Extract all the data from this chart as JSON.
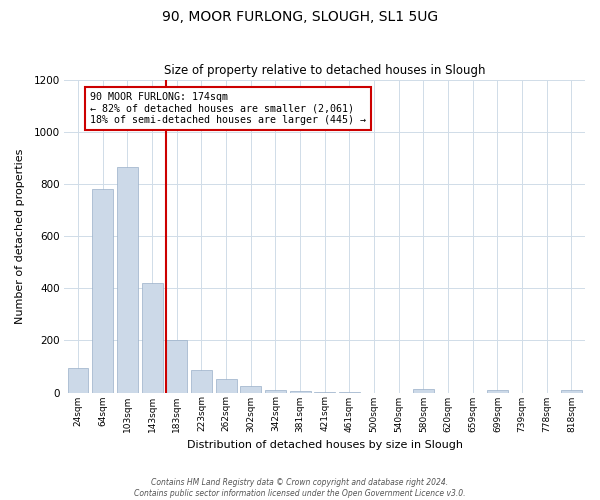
{
  "title": "90, MOOR FURLONG, SLOUGH, SL1 5UG",
  "subtitle": "Size of property relative to detached houses in Slough",
  "xlabel": "Distribution of detached houses by size in Slough",
  "ylabel": "Number of detached properties",
  "bar_labels": [
    "24sqm",
    "64sqm",
    "103sqm",
    "143sqm",
    "183sqm",
    "223sqm",
    "262sqm",
    "302sqm",
    "342sqm",
    "381sqm",
    "421sqm",
    "461sqm",
    "500sqm",
    "540sqm",
    "580sqm",
    "620sqm",
    "659sqm",
    "699sqm",
    "739sqm",
    "778sqm",
    "818sqm"
  ],
  "bar_values": [
    95,
    780,
    865,
    420,
    200,
    85,
    53,
    25,
    10,
    5,
    2,
    1,
    0,
    0,
    12,
    0,
    0,
    10,
    0,
    0,
    8
  ],
  "bar_color": "#ccd9e8",
  "bar_edge_color": "#9ab0c8",
  "vline_index": 4,
  "vline_color": "#cc0000",
  "annotation_text": "90 MOOR FURLONG: 174sqm\n← 82% of detached houses are smaller (2,061)\n18% of semi-detached houses are larger (445) →",
  "annotation_box_color": "#cc0000",
  "ylim": [
    0,
    1200
  ],
  "yticks": [
    0,
    200,
    400,
    600,
    800,
    1000,
    1200
  ],
  "footer_line1": "Contains HM Land Registry data © Crown copyright and database right 2024.",
  "footer_line2": "Contains public sector information licensed under the Open Government Licence v3.0.",
  "background_color": "#ffffff",
  "plot_background": "#ffffff",
  "figsize": [
    6.0,
    5.0
  ],
  "dpi": 100
}
